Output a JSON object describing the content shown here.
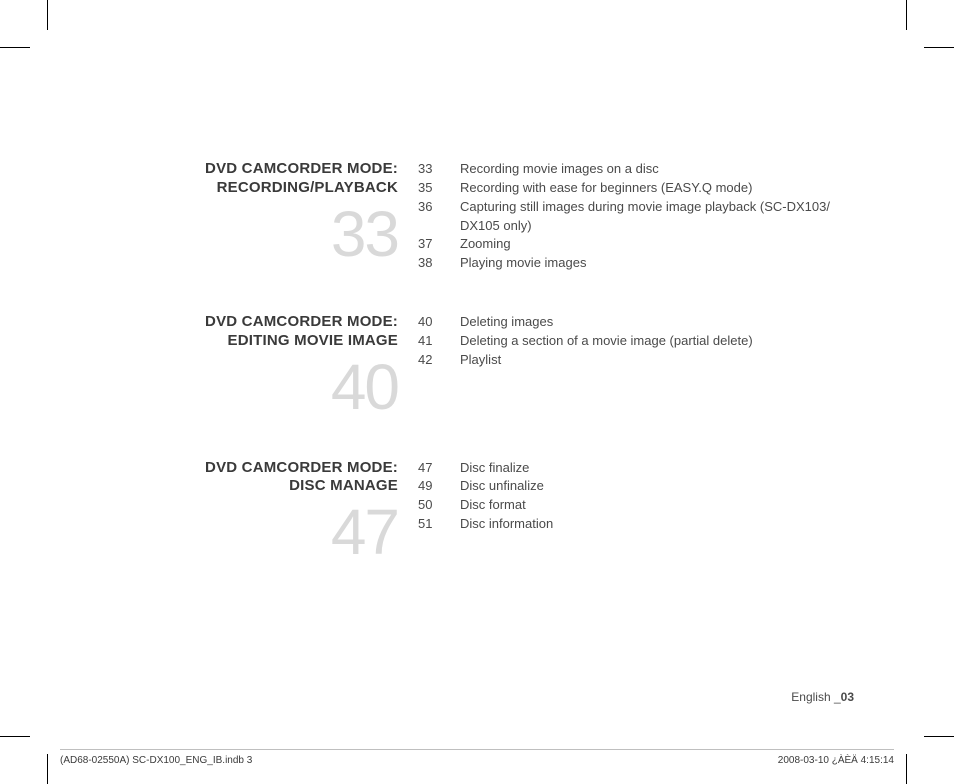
{
  "sections": [
    {
      "title_l1": "DVD CAMCORDER MODE:",
      "title_l2": "RECORDING/PLAYBACK",
      "bignum": "33",
      "entries": [
        {
          "pn": "33",
          "label": "Recording movie images on a disc"
        },
        {
          "pn": "35",
          "label": "Recording with ease for beginners (EASY.Q mode)"
        },
        {
          "pn": "36",
          "label": "Capturing still images during movie image playback (SC-DX103/ DX105 only)"
        },
        {
          "pn": "37",
          "label": "Zooming"
        },
        {
          "pn": "38",
          "label": "Playing movie images"
        }
      ]
    },
    {
      "title_l1": "DVD CAMCORDER MODE:",
      "title_l2": "EDITING MOVIE IMAGE",
      "bignum": "40",
      "entries": [
        {
          "pn": "40",
          "label": "Deleting images"
        },
        {
          "pn": "41",
          "label": "Deleting a section of a movie image (partial delete)"
        },
        {
          "pn": "42",
          "label": "Playlist"
        }
      ]
    },
    {
      "title_l1": "DVD CAMCORDER MODE:",
      "title_l2": "DISC MANAGE",
      "bignum": "47",
      "entries": [
        {
          "pn": "47",
          "label": "Disc finalize"
        },
        {
          "pn": "49",
          "label": "Disc unfinalize"
        },
        {
          "pn": "50",
          "label": "Disc format"
        },
        {
          "pn": "51",
          "label": "Disc information"
        }
      ]
    }
  ],
  "footer": {
    "language": "English _",
    "pagenum": "03"
  },
  "print": {
    "left": "(AD68-02550A) SC-DX100_ENG_IB.indb   3",
    "right": "2008-03-10   ¿ÀÈÄ 4:15:14"
  }
}
